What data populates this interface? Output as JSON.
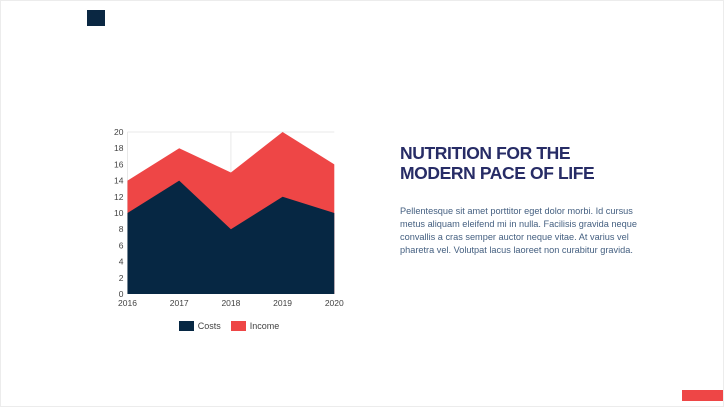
{
  "slide": {
    "background": "#ffffff",
    "border_color": "#ececec"
  },
  "decorations": {
    "square_color": "#0a2742",
    "bar_color": "#ee4646"
  },
  "title": {
    "lines": [
      "NUTRITION FOR THE",
      "MODERN PACE OF LIFE"
    ],
    "color": "#272c66"
  },
  "paragraph": {
    "color": "#456081",
    "lines": [
      "Pellentesque sit amet porttitor eget dolor morbi. Id cursus",
      "metus aliquam eleifend mi in nulla. Facilisis gravida neque",
      "convallis a cras semper auctor neque vitae. At varius vel",
      "pharetra vel. Volutpat lacus laoreet non curabitur gravida."
    ]
  },
  "chart_data": {
    "type": "area",
    "stacked": true,
    "x": [
      "2016",
      "2017",
      "2018",
      "2019",
      "2020"
    ],
    "series": [
      {
        "name": "Costs",
        "values": [
          10,
          14,
          8,
          12,
          10
        ],
        "color": "#062743"
      },
      {
        "name": "Income",
        "values": [
          4,
          4,
          7,
          8,
          6
        ],
        "color": "#ee4646"
      }
    ],
    "stacked_totals": [
      14,
      18,
      15,
      20,
      16
    ],
    "ylim": [
      0,
      20
    ],
    "yticks": [
      0,
      2,
      4,
      6,
      8,
      10,
      12,
      14,
      16,
      18,
      20
    ],
    "xlabel": "",
    "ylabel": "",
    "legend_position": "bottom",
    "legend_labels": [
      "Costs",
      "Income"
    ],
    "axis_label_color": "#424242",
    "gridline_color": "#e8e8e8",
    "grid": "top line, y-axis line, center vertical line only"
  }
}
